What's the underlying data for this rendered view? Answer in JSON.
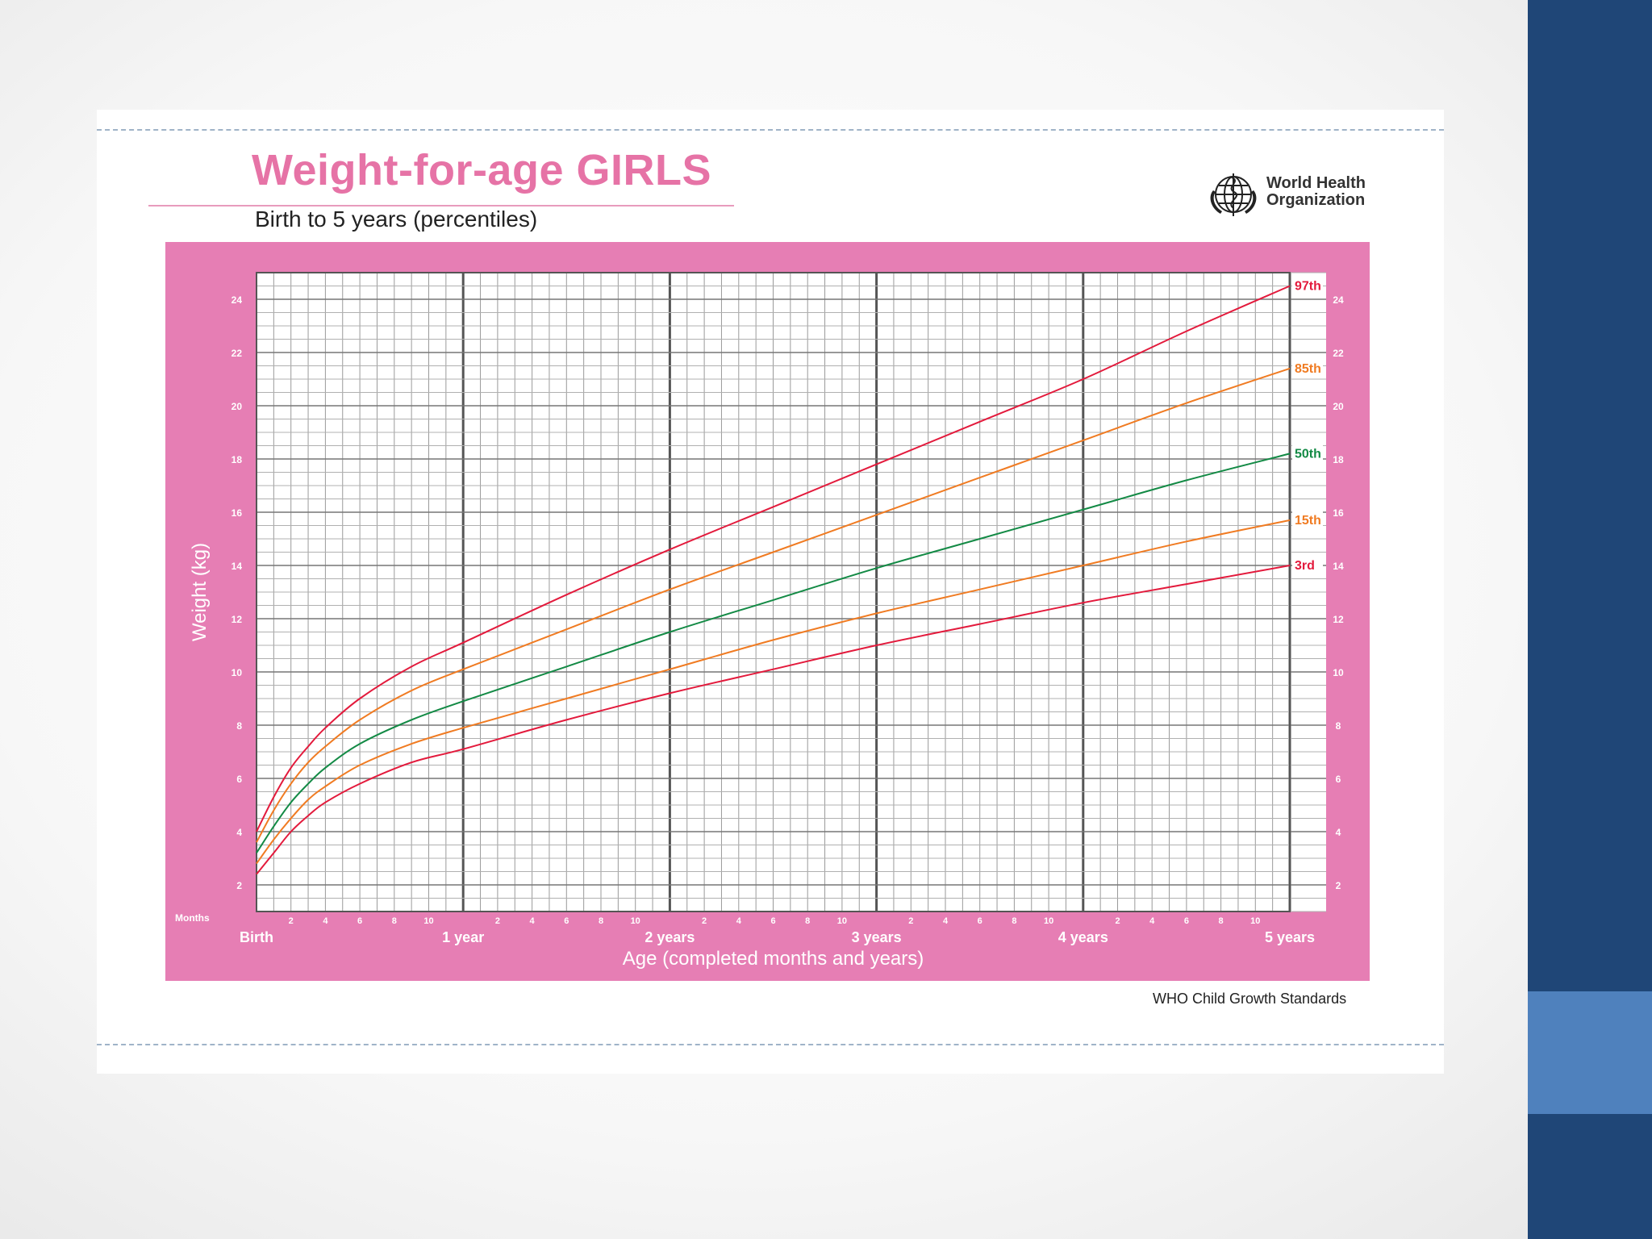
{
  "slide": {
    "title": "Weight-for-age GIRLS",
    "subtitle": "Birth to 5 years (percentiles)",
    "organization_line1": "World Health",
    "organization_line2": "Organization",
    "footer": "WHO Child Growth Standards"
  },
  "colors": {
    "accent_pink": "#e673a6",
    "panel_pink": "#e67eb4",
    "right_band": "#1f4677",
    "right_accent": "#4f81bd",
    "p97": "#e31a3c",
    "p85": "#f07b22",
    "p50": "#138a45",
    "p15": "#f07b22",
    "p3": "#e31a3c"
  },
  "chart_data": {
    "type": "line",
    "title": "Weight-for-age GIRLS",
    "subtitle": "Birth to 5 years (percentiles)",
    "xlabel": "Age (completed months and years)",
    "ylabel": "Weight (kg)",
    "x_unit_label": "Months",
    "xlim": [
      0,
      60
    ],
    "ylim": [
      1,
      25
    ],
    "y_ticks": [
      2,
      4,
      6,
      8,
      10,
      12,
      14,
      16,
      18,
      20,
      22,
      24
    ],
    "x_month_ticks": [
      2,
      4,
      6,
      8,
      10
    ],
    "x_year_labels": [
      "Birth",
      "1 year",
      "2 years",
      "3 years",
      "4 years",
      "5 years"
    ],
    "grid": true,
    "legend": "right",
    "x": [
      0,
      1,
      2,
      3,
      4,
      6,
      9,
      12,
      18,
      24,
      30,
      36,
      42,
      48,
      54,
      60
    ],
    "series": [
      {
        "name": "97th",
        "color": "#e31a3c",
        "values": [
          4.0,
          5.3,
          6.4,
          7.2,
          7.9,
          9.0,
          10.2,
          11.1,
          12.9,
          14.6,
          16.2,
          17.8,
          19.4,
          21.0,
          22.8,
          24.5
        ]
      },
      {
        "name": "85th",
        "color": "#f07b22",
        "values": [
          3.6,
          4.8,
          5.8,
          6.6,
          7.2,
          8.2,
          9.3,
          10.1,
          11.6,
          13.1,
          14.5,
          15.9,
          17.3,
          18.7,
          20.1,
          21.4
        ]
      },
      {
        "name": "50th",
        "color": "#138a45",
        "values": [
          3.2,
          4.2,
          5.1,
          5.8,
          6.4,
          7.3,
          8.2,
          8.9,
          10.2,
          11.5,
          12.7,
          13.9,
          15.0,
          16.1,
          17.2,
          18.2
        ]
      },
      {
        "name": "15th",
        "color": "#f07b22",
        "values": [
          2.8,
          3.7,
          4.5,
          5.2,
          5.7,
          6.5,
          7.3,
          7.9,
          9.0,
          10.1,
          11.2,
          12.2,
          13.1,
          14.0,
          14.9,
          15.7
        ]
      },
      {
        "name": "3rd",
        "color": "#e31a3c",
        "values": [
          2.4,
          3.2,
          4.0,
          4.6,
          5.1,
          5.8,
          6.6,
          7.1,
          8.2,
          9.2,
          10.1,
          11.0,
          11.8,
          12.6,
          13.3,
          14.0
        ]
      }
    ]
  }
}
